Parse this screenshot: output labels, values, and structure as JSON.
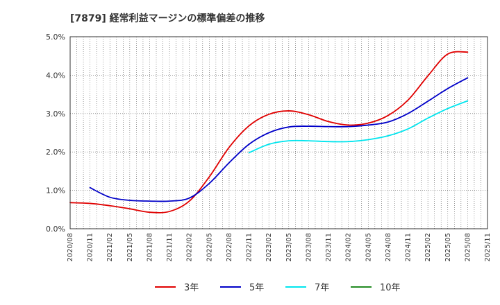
{
  "chart_data": {
    "type": "line",
    "title": "[7879]  経常利益マージンの標準偏差の推移",
    "xlabel": "",
    "ylabel": "",
    "ylim": [
      0,
      5
    ],
    "yticks": [
      0,
      1,
      2,
      3,
      4,
      5
    ],
    "ytick_labels": [
      "0.0%",
      "1.0%",
      "2.0%",
      "3.0%",
      "4.0%",
      "5.0%"
    ],
    "x_start": "2020/08",
    "x_end": "2025/11",
    "categories": [
      "2020/08",
      "2020/11",
      "2021/02",
      "2021/05",
      "2021/08",
      "2021/11",
      "2022/02",
      "2022/05",
      "2022/08",
      "2022/11",
      "2023/02",
      "2023/05",
      "2023/08",
      "2023/11",
      "2024/02",
      "2024/05",
      "2024/08",
      "2024/11",
      "2025/02",
      "2025/05",
      "2025/08",
      "2025/11"
    ],
    "grid": true,
    "legend_position": "bottom",
    "series": [
      {
        "name": "3年",
        "color": "#e00000",
        "points": [
          [
            "2020/08",
            0.68
          ],
          [
            "2020/11",
            0.66
          ],
          [
            "2021/02",
            0.6
          ],
          [
            "2021/05",
            0.52
          ],
          [
            "2021/08",
            0.43
          ],
          [
            "2021/11",
            0.45
          ],
          [
            "2022/02",
            0.72
          ],
          [
            "2022/05",
            1.35
          ],
          [
            "2022/08",
            2.12
          ],
          [
            "2022/11",
            2.68
          ],
          [
            "2023/02",
            2.98
          ],
          [
            "2023/05",
            3.07
          ],
          [
            "2023/08",
            2.97
          ],
          [
            "2023/11",
            2.79
          ],
          [
            "2024/02",
            2.7
          ],
          [
            "2024/05",
            2.75
          ],
          [
            "2024/08",
            2.95
          ],
          [
            "2024/11",
            3.35
          ],
          [
            "2025/02",
            3.98
          ],
          [
            "2025/05",
            4.55
          ],
          [
            "2025/08",
            4.6
          ]
        ]
      },
      {
        "name": "5年",
        "color": "#0000c8",
        "points": [
          [
            "2020/11",
            1.07
          ],
          [
            "2021/02",
            0.82
          ],
          [
            "2021/05",
            0.74
          ],
          [
            "2021/08",
            0.72
          ],
          [
            "2021/11",
            0.72
          ],
          [
            "2022/02",
            0.8
          ],
          [
            "2022/05",
            1.18
          ],
          [
            "2022/08",
            1.72
          ],
          [
            "2022/11",
            2.2
          ],
          [
            "2023/02",
            2.5
          ],
          [
            "2023/05",
            2.65
          ],
          [
            "2023/08",
            2.67
          ],
          [
            "2023/11",
            2.66
          ],
          [
            "2024/02",
            2.66
          ],
          [
            "2024/05",
            2.7
          ],
          [
            "2024/08",
            2.78
          ],
          [
            "2024/11",
            3.0
          ],
          [
            "2025/02",
            3.32
          ],
          [
            "2025/05",
            3.65
          ],
          [
            "2025/08",
            3.93
          ]
        ]
      },
      {
        "name": "7年",
        "color": "#00e5ee",
        "points": [
          [
            "2022/11",
            1.98
          ],
          [
            "2023/02",
            2.2
          ],
          [
            "2023/05",
            2.29
          ],
          [
            "2023/08",
            2.29
          ],
          [
            "2023/11",
            2.27
          ],
          [
            "2024/02",
            2.27
          ],
          [
            "2024/05",
            2.32
          ],
          [
            "2024/08",
            2.42
          ],
          [
            "2024/11",
            2.6
          ],
          [
            "2025/02",
            2.88
          ],
          [
            "2025/05",
            3.13
          ],
          [
            "2025/08",
            3.33
          ]
        ]
      },
      {
        "name": "10年",
        "color": "#228b22",
        "points": []
      }
    ]
  }
}
